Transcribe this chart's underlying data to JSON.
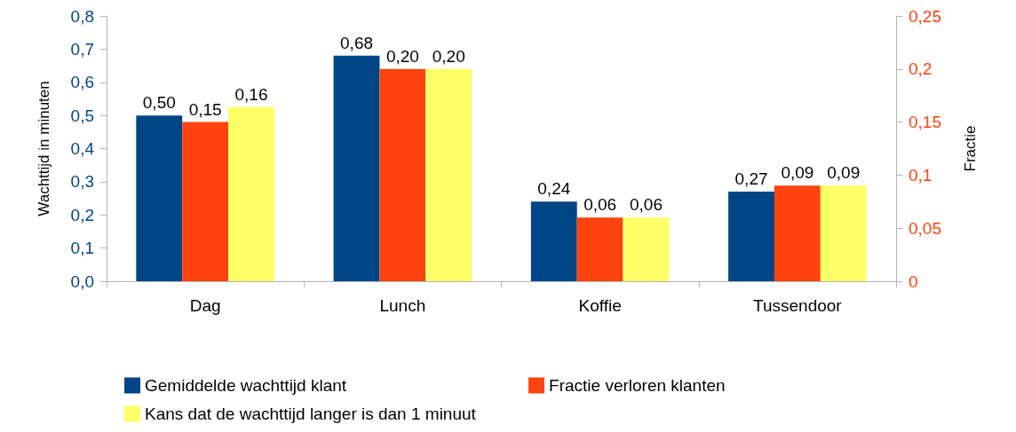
{
  "chart_data": {
    "type": "bar",
    "ylabel": "Wachttijd in minuten",
    "y2label": "Fractie",
    "categories": [
      "Dag",
      "Lunch",
      "Koffie",
      "Tussendoor"
    ],
    "series": [
      {
        "name": "Gemiddelde wachttijd klant",
        "color": "#004586",
        "values": [
          0.5,
          0.68,
          0.24,
          0.27
        ],
        "value_labels": [
          "0,50",
          "0,68",
          "0,24",
          "0,27"
        ]
      },
      {
        "name": "Fractie verloren klanten",
        "color": "#ff420e",
        "axis": "y2",
        "values": [
          0.15,
          0.2,
          0.06,
          0.09
        ],
        "value_labels": [
          "0,15",
          "0,20",
          "0,06",
          "0,09"
        ]
      },
      {
        "name": "Kans dat de wachttijd langer is dan 1 minuut",
        "color": "#ffff66",
        "axis": "y2",
        "values": [
          0.164,
          0.2,
          0.06,
          0.09
        ],
        "value_labels": [
          "0,16",
          "0,20",
          "0,06",
          "0,09"
        ]
      }
    ],
    "ylim": [
      0,
      0.8
    ],
    "yticks": [
      {
        "value": 0,
        "label": "0,0"
      },
      {
        "value": 0.1,
        "label": "0,1"
      },
      {
        "value": 0.2,
        "label": "0,2"
      },
      {
        "value": 0.3,
        "label": "0,3"
      },
      {
        "value": 0.4,
        "label": "0,4"
      },
      {
        "value": 0.5,
        "label": "0,5"
      },
      {
        "value": 0.6,
        "label": "0,6"
      },
      {
        "value": 0.7,
        "label": "0,7"
      },
      {
        "value": 0.8,
        "label": "0,8"
      }
    ],
    "y2lim": [
      0,
      0.25
    ],
    "y2ticks": [
      0,
      {
        "value": 0.05,
        "label": "0,05"
      },
      {
        "value": 0.1,
        "label": "0,1"
      },
      {
        "value": 0.15,
        "label": "0,15"
      },
      {
        "value": 0.2,
        "label": "0,2"
      },
      {
        "value": 0.25,
        "label": "0,25"
      }
    ],
    "grid": false,
    "legend": "bottom"
  }
}
